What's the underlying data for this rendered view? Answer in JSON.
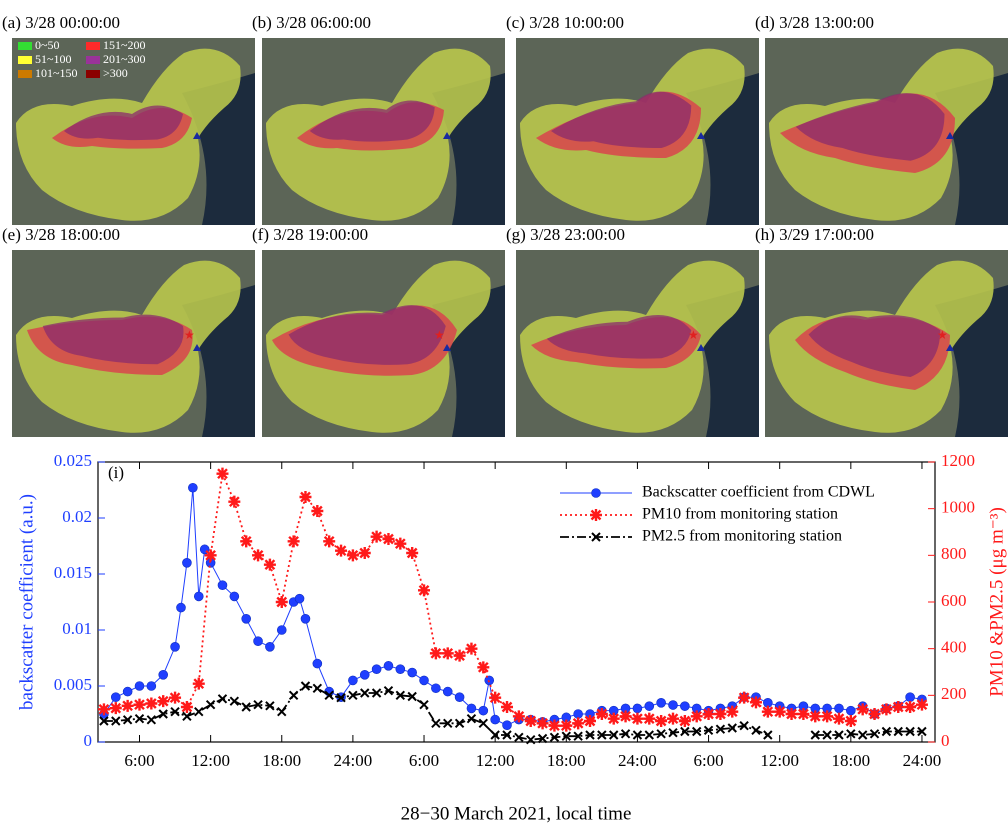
{
  "maps": {
    "panels": [
      "(a) 3/28 00:00:00",
      "(b) 3/28 06:00:00",
      "(c) 3/28 10:00:00",
      "(d) 3/28 13:00:00",
      "(e) 3/28 18:00:00",
      "(f) 3/28 19:00:00",
      "(g) 3/28 23:00:00",
      "(h) 3/29 17:00:00"
    ],
    "legend": [
      {
        "label": "0~50",
        "color": "#33dd33"
      },
      {
        "label": "151~200",
        "color": "#ff2a2a"
      },
      {
        "label": "51~100",
        "color": "#ffff33"
      },
      {
        "label": "201~300",
        "color": "#993399"
      },
      {
        "label": "101~150",
        "color": "#cc7a00"
      },
      {
        "label": ">300",
        "color": "#8b0000"
      }
    ]
  },
  "chart_data": {
    "type": "line",
    "panel_label": "(i)",
    "x_label": "28−30 March 2021, local time",
    "y_label": "backscatter coefficient (a.u.)",
    "y2_label": "PM10 &PM2.5 (μg m⁻³)",
    "xlim": [
      2.5,
      73.1
    ],
    "xticks": [
      {
        "value": 6,
        "label": "6:00"
      },
      {
        "value": 12,
        "label": "12:00"
      },
      {
        "value": 18,
        "label": "18:00"
      },
      {
        "value": 24,
        "label": "24:00"
      },
      {
        "value": 30,
        "label": "6:00"
      },
      {
        "value": 36,
        "label": "12:00"
      },
      {
        "value": 42,
        "label": "18:00"
      },
      {
        "value": 48,
        "label": "24:00"
      },
      {
        "value": 54,
        "label": "6:00"
      },
      {
        "value": 60,
        "label": "12:00"
      },
      {
        "value": 66,
        "label": "18:00"
      },
      {
        "value": 72,
        "label": "24:00"
      }
    ],
    "ylim": [
      0,
      0.025
    ],
    "yticks": [
      0,
      0.005,
      0.01,
      0.015,
      0.02,
      0.025
    ],
    "y2lim": [
      0,
      1200
    ],
    "y2ticks": [
      0,
      200,
      400,
      600,
      800,
      1000,
      1200
    ],
    "series": [
      {
        "name": "Backscatter coefficient from CDWL",
        "color": "#1f3fff",
        "marker": "circle",
        "x": [
          3,
          4,
          5,
          6,
          7,
          8,
          9,
          9.5,
          10,
          10.5,
          11,
          11.5,
          12,
          13,
          14,
          15,
          16,
          17,
          18,
          19,
          19.5,
          20,
          21,
          22,
          23,
          24,
          25,
          26,
          27,
          28,
          29,
          30,
          31,
          32,
          33,
          34,
          35,
          35.5,
          36,
          37,
          38,
          39,
          40,
          41,
          42,
          43,
          44,
          45,
          46,
          47,
          48,
          49,
          50,
          51,
          52,
          53,
          54,
          55,
          56,
          57,
          58,
          59,
          60,
          61,
          62,
          63,
          64,
          65,
          66,
          67,
          68,
          69,
          70,
          71,
          72
        ],
        "values": [
          0.0025,
          0.004,
          0.0045,
          0.005,
          0.005,
          0.006,
          0.0085,
          0.012,
          0.016,
          0.0227,
          0.013,
          0.0172,
          0.016,
          0.014,
          0.013,
          0.011,
          0.009,
          0.0085,
          0.01,
          0.0125,
          0.0128,
          0.011,
          0.007,
          0.0045,
          0.004,
          0.0055,
          0.006,
          0.0065,
          0.0068,
          0.0065,
          0.0062,
          0.0055,
          0.0048,
          0.0045,
          0.004,
          0.003,
          0.0028,
          0.0055,
          0.002,
          0.0015,
          0.002,
          0.002,
          0.0018,
          0.002,
          0.0022,
          0.0025,
          0.0025,
          0.0028,
          0.0028,
          0.003,
          0.003,
          0.0032,
          0.0035,
          0.0033,
          0.0032,
          0.003,
          0.0028,
          0.003,
          0.0032,
          0.004,
          0.004,
          0.0035,
          0.0032,
          0.003,
          0.0032,
          0.003,
          0.003,
          0.003,
          0.0028,
          0.0032,
          0.0025,
          0.003,
          0.0032,
          0.004,
          0.0038
        ]
      },
      {
        "name": "PM10 from monitoring station",
        "color": "#ff1a1a",
        "marker": "star",
        "axis": "y2",
        "x": [
          3,
          4,
          5,
          6,
          7,
          8,
          9,
          10,
          11,
          12,
          13,
          14,
          15,
          16,
          17,
          18,
          19,
          20,
          21,
          22,
          23,
          24,
          25,
          26,
          27,
          28,
          29,
          30,
          31,
          32,
          33,
          34,
          35,
          36,
          37,
          38,
          39,
          40,
          41,
          42,
          43,
          44,
          45,
          46,
          47,
          48,
          49,
          50,
          51,
          52,
          53,
          54,
          55,
          56,
          57,
          58,
          59,
          60,
          61,
          62,
          63,
          64,
          65,
          66,
          67,
          68,
          69,
          70,
          71,
          72
        ],
        "values": [
          140,
          145,
          155,
          160,
          165,
          175,
          190,
          150,
          250,
          800,
          1150,
          1030,
          860,
          800,
          760,
          600,
          860,
          1050,
          990,
          860,
          820,
          800,
          810,
          880,
          870,
          850,
          810,
          650,
          380,
          380,
          370,
          400,
          320,
          190,
          150,
          110,
          90,
          80,
          70,
          70,
          80,
          90,
          120,
          100,
          110,
          100,
          100,
          90,
          100,
          90,
          110,
          120,
          120,
          130,
          190,
          170,
          130,
          130,
          120,
          120,
          110,
          110,
          100,
          90,
          140,
          120,
          140,
          150,
          150,
          160
        ]
      },
      {
        "name": "PM2.5 from monitoring station",
        "color": "#000000",
        "marker": "cross",
        "axis": "y2",
        "x": [
          3,
          4,
          5,
          6,
          7,
          8,
          9,
          10,
          11,
          12,
          13,
          14,
          15,
          16,
          17,
          18,
          19,
          20,
          21,
          22,
          23,
          24,
          25,
          26,
          27,
          28,
          29,
          30,
          31,
          32,
          33,
          34,
          35,
          36,
          37,
          38,
          39,
          40,
          41,
          42,
          43,
          44,
          45,
          46,
          47,
          48,
          49,
          50,
          51,
          52,
          53,
          54,
          55,
          56,
          57,
          58,
          59,
          60,
          61,
          62,
          63,
          64,
          65,
          66,
          67,
          68,
          69,
          70,
          71,
          72
        ],
        "values": [
          90,
          90,
          95,
          100,
          95,
          120,
          130,
          110,
          130,
          160,
          185,
          175,
          150,
          160,
          155,
          130,
          200,
          240,
          230,
          200,
          190,
          200,
          210,
          210,
          220,
          200,
          195,
          160,
          80,
          80,
          80,
          100,
          80,
          30,
          30,
          20,
          10,
          15,
          20,
          25,
          25,
          30,
          30,
          30,
          35,
          30,
          30,
          35,
          40,
          45,
          45,
          50,
          55,
          60,
          70,
          50,
          30,
          null,
          null,
          null,
          30,
          30,
          30,
          35,
          30,
          35,
          45,
          45,
          45,
          45
        ]
      }
    ]
  }
}
